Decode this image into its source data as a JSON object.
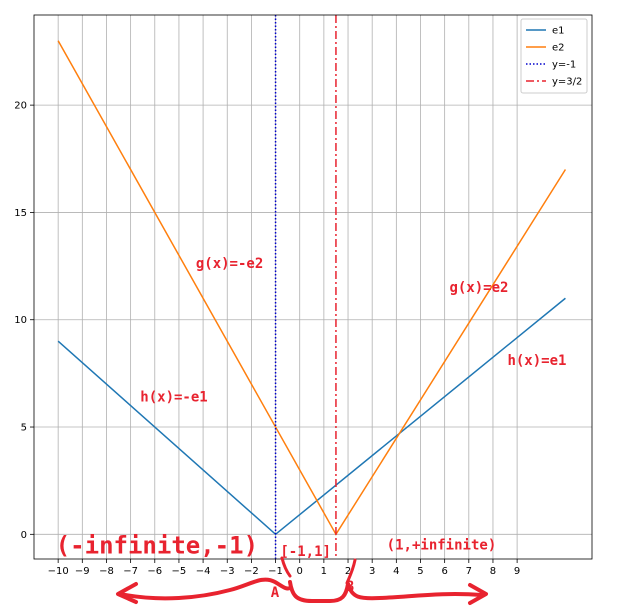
{
  "chart_data": {
    "type": "line",
    "title": "",
    "xlabel": "",
    "ylabel": "",
    "xlim": [
      -11,
      12.1
    ],
    "ylim": [
      -1.15,
      24.2
    ],
    "grid": true,
    "legend_placement": "top-right",
    "x_ticks": [
      -10,
      -9,
      -8,
      -7,
      -6,
      -5,
      -4,
      -3,
      -2,
      -1,
      0,
      1,
      2,
      3,
      4,
      5,
      6,
      7,
      8,
      9
    ],
    "y_ticks": [
      0,
      5,
      10,
      15,
      20
    ],
    "series": [
      {
        "name": "e1",
        "style": "solid",
        "color": "#1f77b4",
        "points": [
          [
            -10,
            9
          ],
          [
            -1,
            0
          ],
          [
            11,
            11
          ]
        ]
      },
      {
        "name": "e2",
        "style": "solid",
        "color": "#ff7f0e",
        "points": [
          [
            -10,
            23
          ],
          [
            1.5,
            0
          ],
          [
            11,
            17
          ]
        ]
      },
      {
        "name": "y=-1",
        "style": "dotted",
        "color": "#0000cc",
        "vertical_x": -1
      },
      {
        "name": "y=3/2",
        "style": "dashdot",
        "color": "#e8232f",
        "vertical_x": 1.5
      }
    ],
    "annotations": [
      {
        "text": "g(x)=-e2",
        "x": -4.3,
        "y": 12.4,
        "size": 14
      },
      {
        "text": "g(x)=e2",
        "x": 6.2,
        "y": 11.3,
        "size": 14
      },
      {
        "text": "h(x)=-e1",
        "x": -6.6,
        "y": 6.2,
        "size": 14
      },
      {
        "text": "h(x)=e1",
        "x": 8.6,
        "y": 7.9,
        "size": 14
      },
      {
        "text": "(-infinite,-1)",
        "x": -10.1,
        "y": -0.9,
        "size": 24
      },
      {
        "text": "[-1,1]",
        "x": -0.8,
        "y": -1.0,
        "size": 14
      },
      {
        "text": "(1,+infinite)",
        "x": 3.6,
        "y": -0.7,
        "size": 14
      }
    ],
    "marker_labels": [
      {
        "text": "A",
        "x": -1.2
      },
      {
        "text": "B",
        "x": 1.9
      }
    ]
  }
}
